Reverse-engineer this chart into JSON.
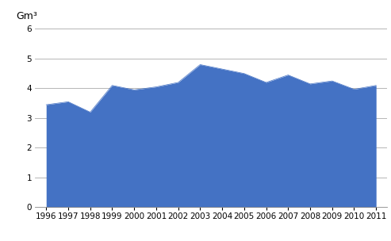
{
  "years": [
    1996,
    1997,
    1998,
    1999,
    2000,
    2001,
    2002,
    2003,
    2004,
    2005,
    2006,
    2007,
    2008,
    2009,
    2010,
    2011
  ],
  "values": [
    3.45,
    3.55,
    3.2,
    4.1,
    3.95,
    4.05,
    4.2,
    4.8,
    4.65,
    4.5,
    4.2,
    4.45,
    4.15,
    4.25,
    3.97,
    4.1
  ],
  "fill_color": "#4472C4",
  "line_color": "#4472C4",
  "ylabel": "Gm³",
  "ylim": [
    0,
    6
  ],
  "yticks": [
    0,
    1,
    2,
    3,
    4,
    5,
    6
  ],
  "grid_color": "#aaaaaa",
  "background_color": "#ffffff",
  "tick_fontsize": 7.5,
  "ylabel_fontsize": 9
}
